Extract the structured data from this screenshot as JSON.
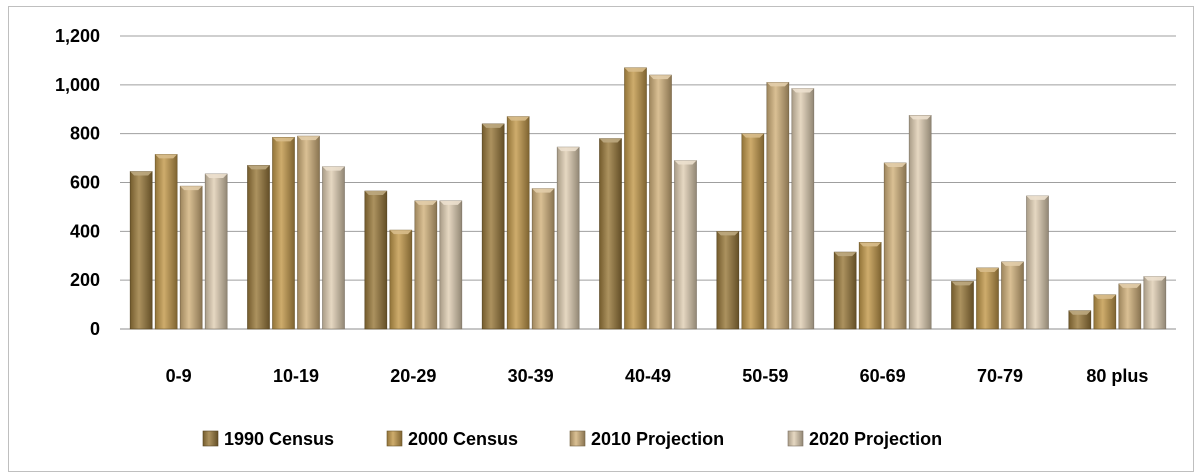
{
  "chart_data": {
    "type": "bar",
    "title": "",
    "xlabel": "",
    "ylabel": "",
    "ylim": [
      0,
      1200
    ],
    "y_ticks": [
      0,
      200,
      400,
      600,
      800,
      1000,
      1200
    ],
    "y_tick_labels": [
      "0",
      "200",
      "400",
      "600",
      "800",
      "1,000",
      "1,200"
    ],
    "grid": true,
    "legend_position": "bottom",
    "categories": [
      "0-9",
      "10-19",
      "20-29",
      "30-39",
      "40-49",
      "50-59",
      "60-69",
      "70-79",
      "80 plus"
    ],
    "series": [
      {
        "name": "1990 Census",
        "color": "#9a7a3c",
        "values": [
          645,
          670,
          565,
          840,
          780,
          400,
          315,
          195,
          75
        ]
      },
      {
        "name": "2000 Census",
        "color": "#c39a4c",
        "values": [
          715,
          785,
          405,
          870,
          1070,
          800,
          355,
          250,
          140
        ]
      },
      {
        "name": "2010 Projection",
        "color": "#d2b27c",
        "values": [
          585,
          790,
          525,
          575,
          1040,
          1010,
          680,
          275,
          185
        ]
      },
      {
        "name": "2020 Projection",
        "color": "#e1d0b4",
        "values": [
          635,
          665,
          525,
          745,
          690,
          985,
          875,
          545,
          215
        ]
      }
    ]
  }
}
